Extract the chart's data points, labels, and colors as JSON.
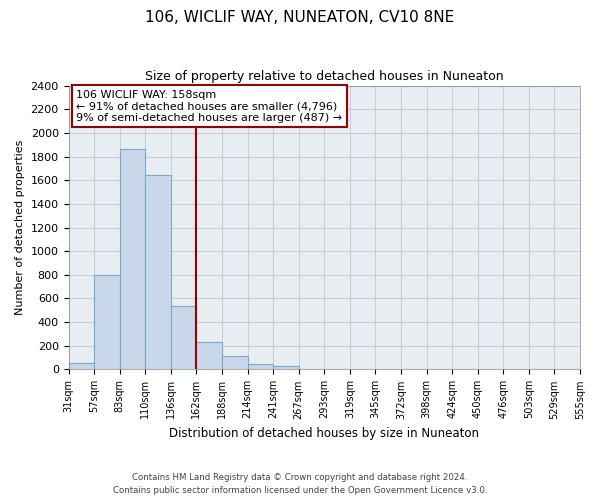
{
  "title": "106, WICLIF WAY, NUNEATON, CV10 8NE",
  "subtitle": "Size of property relative to detached houses in Nuneaton",
  "bar_values": [
    55,
    800,
    1860,
    1640,
    540,
    235,
    110,
    50,
    25,
    0,
    0,
    0,
    0,
    0,
    0,
    0,
    0,
    0,
    0,
    0
  ],
  "bin_labels": [
    "31sqm",
    "57sqm",
    "83sqm",
    "110sqm",
    "136sqm",
    "162sqm",
    "188sqm",
    "214sqm",
    "241sqm",
    "267sqm",
    "293sqm",
    "319sqm",
    "345sqm",
    "372sqm",
    "398sqm",
    "424sqm",
    "450sqm",
    "476sqm",
    "503sqm",
    "529sqm",
    "555sqm"
  ],
  "bar_color_face": "#c8d8ea",
  "bar_color_edge": "#7aa8c8",
  "vline_color": "#990000",
  "ylim": [
    0,
    2400
  ],
  "yticks": [
    0,
    200,
    400,
    600,
    800,
    1000,
    1200,
    1400,
    1600,
    1800,
    2000,
    2200,
    2400
  ],
  "ylabel": "Number of detached properties",
  "xlabel": "Distribution of detached houses by size in Nuneaton",
  "annotation_title": "106 WICLIF WAY: 158sqm",
  "annotation_line1": "← 91% of detached houses are smaller (4,796)",
  "annotation_line2": "9% of semi-detached houses are larger (487) →",
  "footer_line1": "Contains HM Land Registry data © Crown copyright and database right 2024.",
  "footer_line2": "Contains public sector information licensed under the Open Government Licence v3.0.",
  "plot_background": "#e8edf2",
  "fig_background": "#ffffff"
}
